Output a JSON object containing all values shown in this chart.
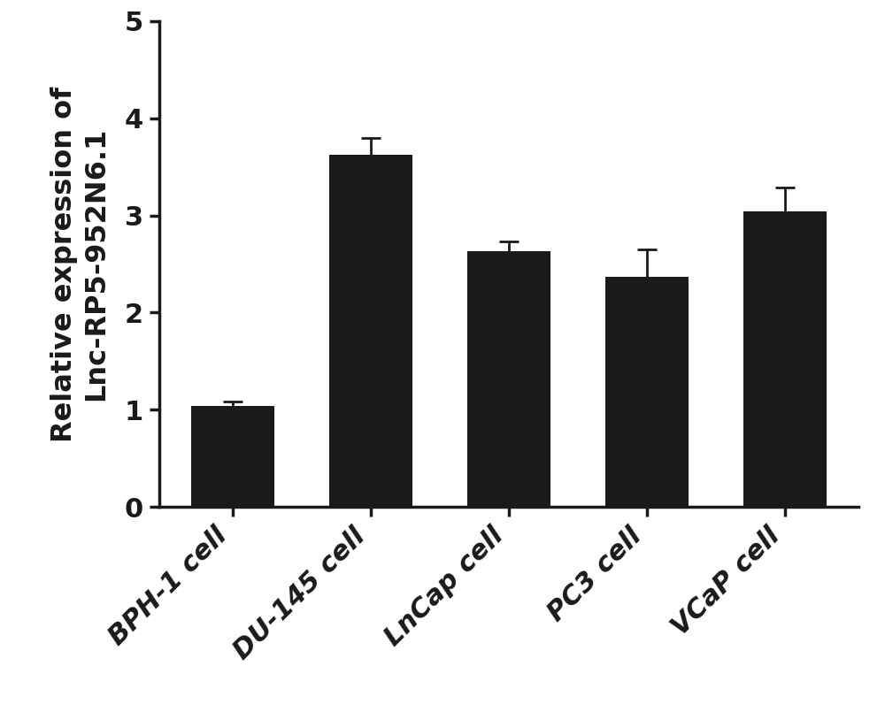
{
  "categories": [
    "BPH-1 cell",
    "DU-145 cell",
    "LnCap cell",
    "PC3 cell",
    "VCaP cell"
  ],
  "values": [
    1.04,
    3.62,
    2.63,
    2.37,
    3.04
  ],
  "errors": [
    0.04,
    0.18,
    0.1,
    0.28,
    0.25
  ],
  "bar_color": "#1a1a1a",
  "bar_width": 0.6,
  "ylabel": "Relative expression of\nLnc-RP5-952N6.1",
  "ylim": [
    0,
    5
  ],
  "yticks": [
    0,
    1,
    2,
    3,
    4,
    5
  ],
  "background_color": "#ffffff",
  "tick_fontsize": 22,
  "label_fontsize": 23,
  "error_capsize": 8,
  "error_linewidth": 2.0,
  "error_color": "#1a1a1a",
  "spine_linewidth": 2.5
}
